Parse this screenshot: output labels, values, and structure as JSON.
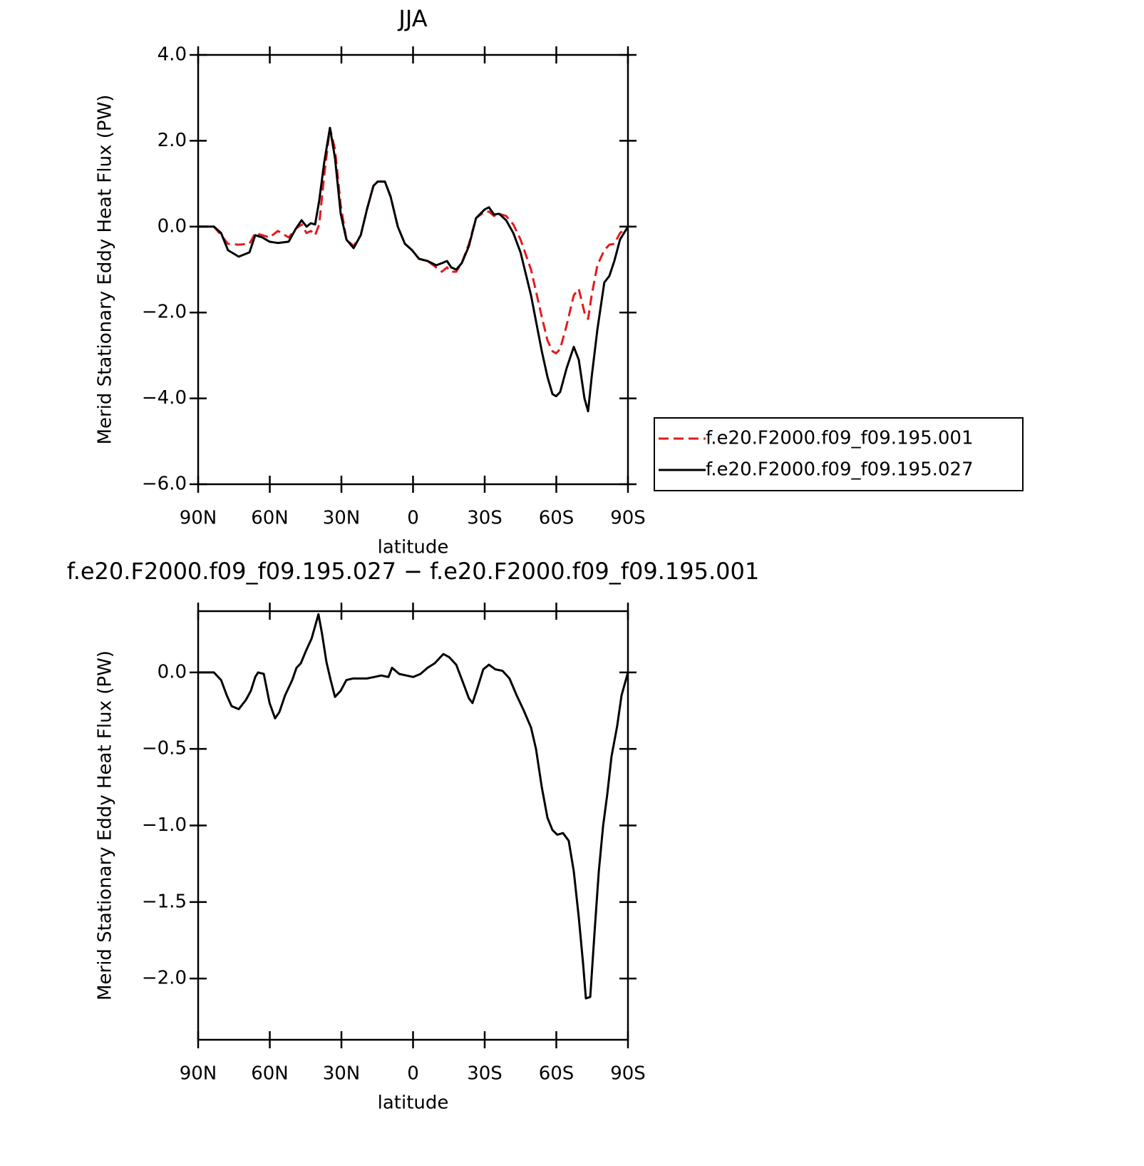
{
  "chart_data": [
    {
      "type": "line",
      "title": "JJA",
      "xlabel": "latitude",
      "ylabel": "Merid Stationary Eddy Heat Flux (PW)",
      "x": [
        90,
        83.4,
        80.4,
        77.5,
        73,
        68.5,
        66.1,
        63.1,
        60.1,
        56.6,
        52.1,
        49.1,
        46.7,
        44.6,
        42.8,
        41,
        39.3,
        37.2,
        34.8,
        32.7,
        30.3,
        27.9,
        24.9,
        21.9,
        19.3,
        16.6,
        14.8,
        11.8,
        9.4,
        6.4,
        3.4,
        0.4,
        -2.5,
        -6.1,
        -9.7,
        -12.1,
        -14.2,
        -16,
        -18.1,
        -20.4,
        -23.4,
        -26.4,
        -30,
        -31.8,
        -33.9,
        -36,
        -39,
        -42,
        -45,
        -49.4,
        -53.9,
        -56.3,
        -58.4,
        -59.9,
        -61.6,
        -64.3,
        -67.3,
        -69.4,
        -71.8,
        -73.3,
        -74.8,
        -77.2,
        -80.1,
        -82.2,
        -84.3,
        -86.7,
        -90
      ],
      "series": [
        {
          "name": "f.e20.F2000.f09_f09.195.001",
          "color": "#e41a1c",
          "dash": true,
          "values": [
            0,
            0,
            -0.2,
            -0.4,
            -0.42,
            -0.4,
            -0.15,
            -0.2,
            -0.25,
            -0.1,
            -0.25,
            -0.05,
            0.05,
            -0.15,
            -0.1,
            -0.2,
            0.05,
            1.2,
            2.3,
            1.8,
            0.5,
            -0.3,
            -0.45,
            -0.2,
            0.4,
            0.95,
            1.05,
            1.05,
            0.7,
            0,
            -0.4,
            -0.55,
            -0.75,
            -0.8,
            -0.95,
            -1.05,
            -0.95,
            -1.05,
            -1.05,
            -0.85,
            -0.4,
            0.2,
            0.35,
            0.35,
            0.25,
            0.3,
            0.25,
            0.05,
            -0.3,
            -1.0,
            -2.1,
            -2.65,
            -2.9,
            -2.95,
            -2.85,
            -2.3,
            -1.6,
            -1.45,
            -2.0,
            -2.15,
            -1.6,
            -0.9,
            -0.55,
            -0.42,
            -0.4,
            -0.15,
            0
          ]
        },
        {
          "name": "f.e20.F2000.f09_f09.195.027",
          "color": "#000000",
          "dash": false,
          "values": [
            0,
            0,
            -0.15,
            -0.55,
            -0.7,
            -0.6,
            -0.2,
            -0.25,
            -0.35,
            -0.38,
            -0.35,
            -0.05,
            0.15,
            0,
            0.08,
            0.05,
            0.6,
            1.5,
            2.3,
            1.6,
            0.3,
            -0.3,
            -0.5,
            -0.2,
            0.4,
            0.95,
            1.05,
            1.05,
            0.7,
            0,
            -0.4,
            -0.55,
            -0.75,
            -0.8,
            -0.9,
            -0.85,
            -0.8,
            -0.95,
            -1.0,
            -0.85,
            -0.45,
            0.2,
            0.4,
            0.45,
            0.28,
            0.3,
            0.15,
            -0.15,
            -0.6,
            -1.6,
            -2.9,
            -3.5,
            -3.9,
            -3.95,
            -3.85,
            -3.3,
            -2.8,
            -3.1,
            -4.0,
            -4.3,
            -3.5,
            -2.4,
            -1.3,
            -1.15,
            -0.8,
            -0.3,
            0
          ]
        }
      ],
      "xlim": [
        90,
        -90
      ],
      "xticks": [
        {
          "value": 90,
          "label": "90N"
        },
        {
          "value": 60,
          "label": "60N"
        },
        {
          "value": 30,
          "label": "30N"
        },
        0,
        {
          "value": -30,
          "label": "30S"
        },
        {
          "value": -60,
          "label": "60S"
        },
        {
          "value": -90,
          "label": "90S"
        }
      ],
      "ylim": [
        -6,
        4
      ],
      "yticks": [
        {
          "value": 4,
          "label": "4.0"
        },
        {
          "value": 2,
          "label": "2.0"
        },
        {
          "value": 0,
          "label": "0.0"
        },
        {
          "value": -2,
          "label": "−2.0"
        },
        {
          "value": -4,
          "label": "−4.0"
        },
        {
          "value": -6,
          "label": "−6.0"
        }
      ],
      "legend": "right"
    },
    {
      "type": "line",
      "title": "f.e20.F2000.f09_f09.195.027 − f.e20.F2000.f09_f09.195.001",
      "xlabel": "latitude",
      "ylabel": "Merid Stationary Eddy Heat Flux (PW)",
      "x": [
        90,
        83.4,
        80.4,
        78,
        76,
        73,
        70,
        67.9,
        66.1,
        64.9,
        62.5,
        60.1,
        57.8,
        56,
        53.6,
        50.6,
        48.8,
        47,
        44.6,
        42.5,
        40.7,
        39.6,
        38.1,
        36.3,
        34.5,
        32.7,
        30.3,
        27.9,
        25.2,
        22.2,
        19.3,
        16.3,
        13.3,
        10.3,
        8.8,
        5.8,
        2.8,
        -0.1,
        -3.1,
        -6.1,
        -9.1,
        -12.7,
        -15.1,
        -18.1,
        -21,
        -23.4,
        -24.9,
        -27,
        -29.4,
        -31.8,
        -34.5,
        -37.5,
        -40.4,
        -43.4,
        -46.4,
        -49.4,
        -51.5,
        -53.9,
        -56.3,
        -58.4,
        -60.4,
        -62.8,
        -65.2,
        -67.3,
        -69.4,
        -71.2,
        -72.4,
        -74.2,
        -76,
        -77.8,
        -79.6,
        -81.3,
        -83.1,
        -85.5,
        -87.3,
        -90
      ],
      "series": [
        {
          "color": "#000000",
          "dash": false,
          "values": [
            0,
            0,
            -0.05,
            -0.15,
            -0.22,
            -0.24,
            -0.18,
            -0.12,
            -0.03,
            0,
            -0.01,
            -0.2,
            -0.3,
            -0.26,
            -0.15,
            -0.05,
            0.03,
            0.06,
            0.15,
            0.22,
            0.32,
            0.38,
            0.25,
            0.07,
            -0.05,
            -0.16,
            -0.12,
            -0.05,
            -0.04,
            -0.04,
            -0.04,
            -0.03,
            -0.02,
            -0.03,
            0.03,
            -0.01,
            -0.02,
            -0.03,
            -0.01,
            0.03,
            0.06,
            0.12,
            0.1,
            0.05,
            -0.07,
            -0.17,
            -0.2,
            -0.1,
            0.02,
            0.05,
            0.02,
            0.01,
            -0.04,
            -0.15,
            -0.25,
            -0.36,
            -0.5,
            -0.75,
            -0.95,
            -1.03,
            -1.06,
            -1.05,
            -1.1,
            -1.3,
            -1.6,
            -1.9,
            -2.13,
            -2.12,
            -1.7,
            -1.3,
            -1.0,
            -0.8,
            -0.55,
            -0.35,
            -0.15,
            0
          ]
        }
      ],
      "xlim": [
        90,
        -90
      ],
      "xticks": [
        {
          "value": 90,
          "label": "90N"
        },
        {
          "value": 60,
          "label": "60N"
        },
        {
          "value": 30,
          "label": "30N"
        },
        0,
        {
          "value": -30,
          "label": "30S"
        },
        {
          "value": -60,
          "label": "60S"
        },
        {
          "value": -90,
          "label": "90S"
        }
      ],
      "ylim": [
        -2.4,
        0.4
      ],
      "yticks": [
        {
          "value": 0,
          "label": "0.0"
        },
        {
          "value": -0.5,
          "label": "−0.5"
        },
        {
          "value": -1,
          "label": "−1.0"
        },
        {
          "value": -1.5,
          "label": "−1.5"
        },
        {
          "value": -2,
          "label": "−2.0"
        }
      ]
    }
  ]
}
